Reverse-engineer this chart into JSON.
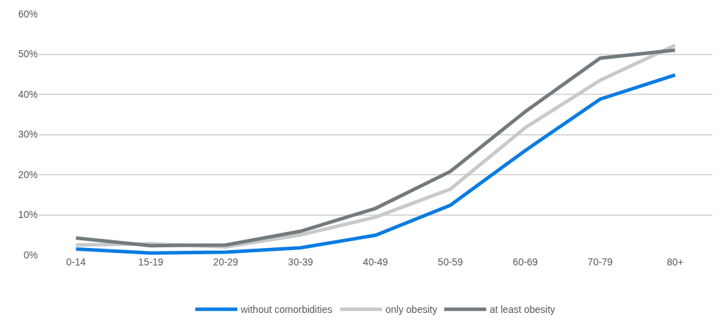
{
  "chart_data": {
    "type": "line",
    "categories": [
      "0-14",
      "15-19",
      "20-29",
      "30-39",
      "40-49",
      "50-59",
      "60-69",
      "70-79",
      "80+"
    ],
    "series": [
      {
        "name": "without comorbidities",
        "color": "#0a7ce0",
        "values": [
          1.5,
          0.5,
          0.7,
          1.8,
          4.9,
          12.4,
          26,
          38.8,
          44.8
        ]
      },
      {
        "name": "only obesity",
        "color": "#c8c9ca",
        "values": [
          2.5,
          2.8,
          2.0,
          5.0,
          9.4,
          16.4,
          31.7,
          43.5,
          52.2
        ]
      },
      {
        "name": "at least obesity",
        "color": "#737a7e",
        "values": [
          4.2,
          2.3,
          2.5,
          5.9,
          11.6,
          20.8,
          35.7,
          49.0,
          51.0
        ]
      }
    ],
    "ylim": [
      0,
      60
    ],
    "yticks": [
      {
        "value": 0,
        "label": "0%"
      },
      {
        "value": 10,
        "label": "10%"
      },
      {
        "value": 20,
        "label": "20%"
      },
      {
        "value": 30,
        "label": "30%"
      },
      {
        "value": 40,
        "label": "40%"
      },
      {
        "value": 50,
        "label": "50%"
      },
      {
        "value": 60,
        "label": "60%"
      }
    ],
    "grid": "y",
    "legend": "bottom",
    "marker": "none",
    "line_style": "solid"
  }
}
